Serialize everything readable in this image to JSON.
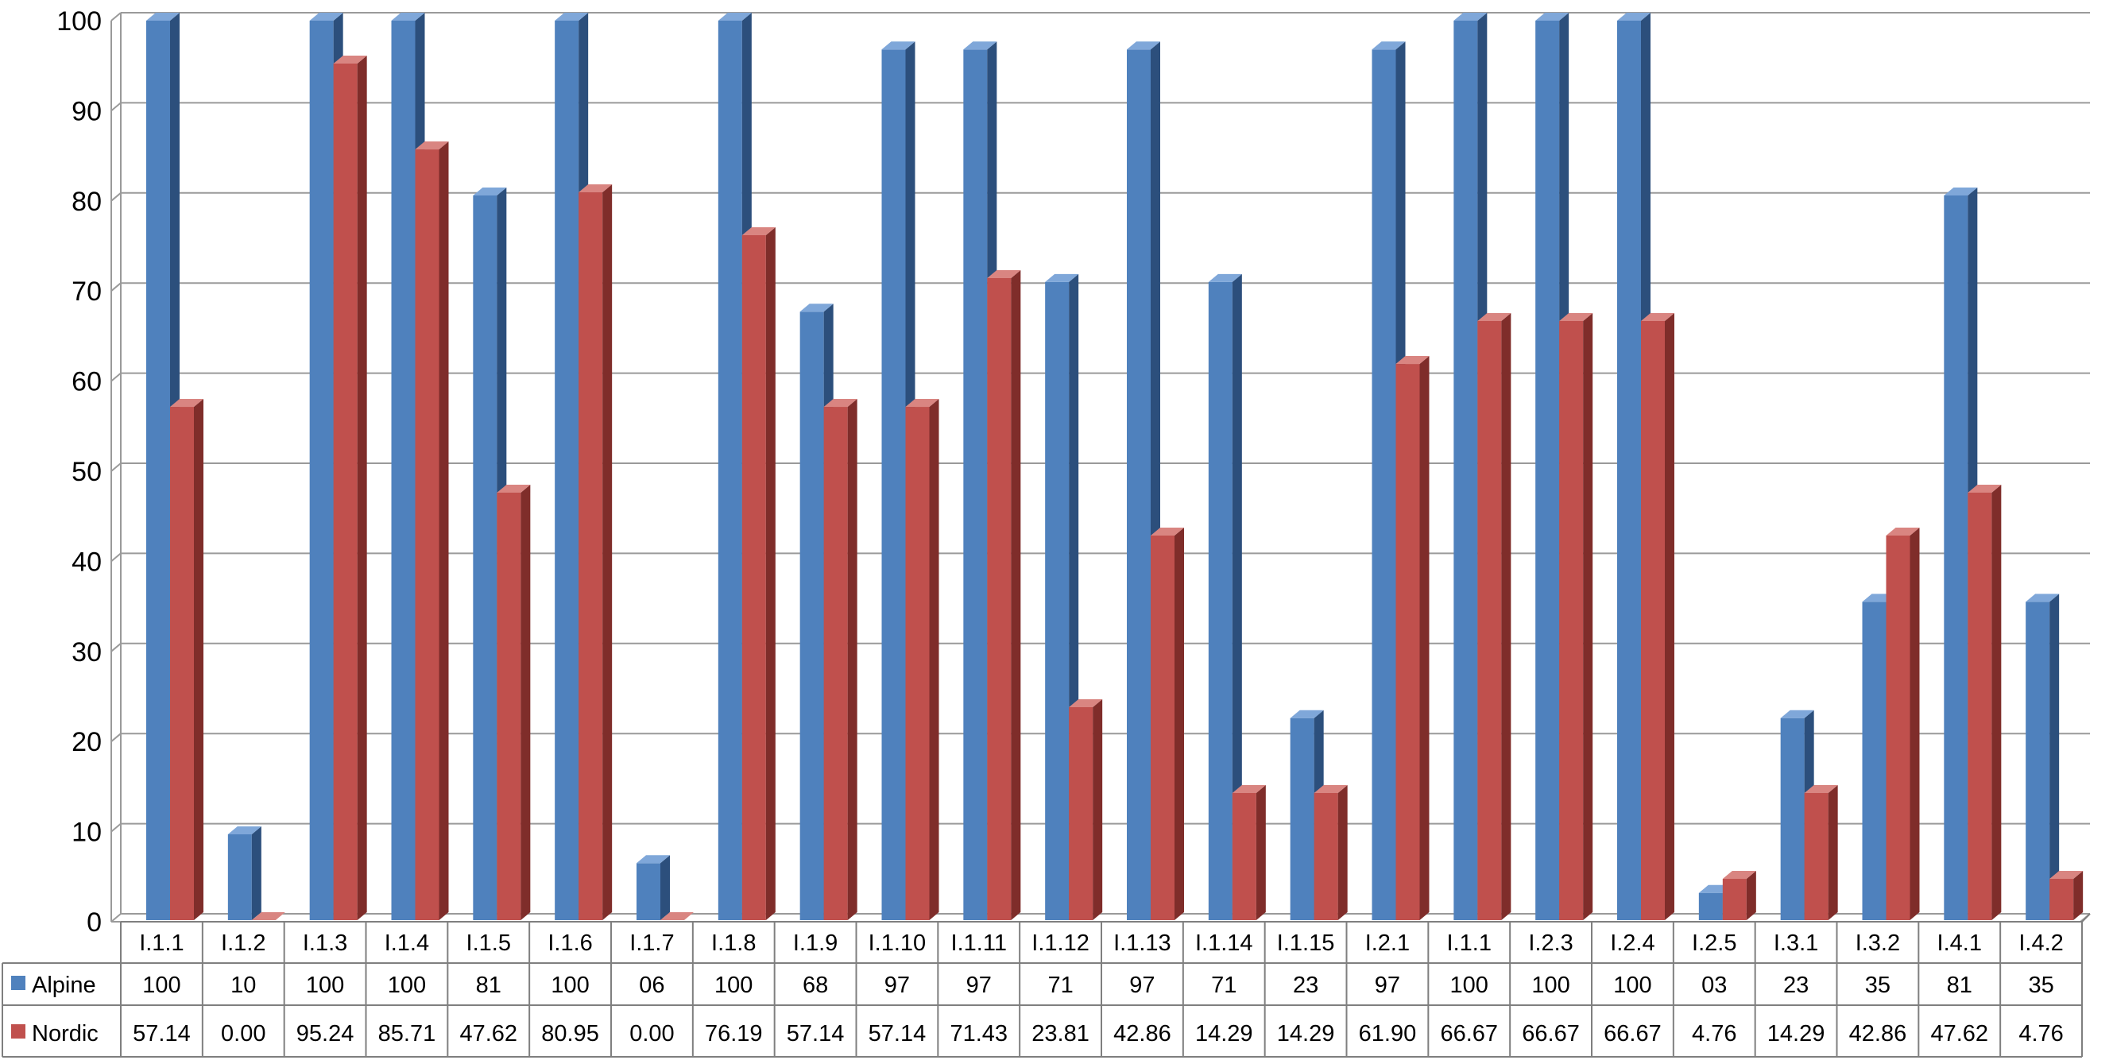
{
  "chart_data": {
    "type": "bar",
    "categories": [
      "I.1.1",
      "I.1.2",
      "I.1.3",
      "I.1.4",
      "I.1.5",
      "I.1.6",
      "I.1.7",
      "I.1.8",
      "I.1.9",
      "I.1.10",
      "I.1.11",
      "I.1.12",
      "I.1.13",
      "I.1.14",
      "I.1.15",
      "I.2.1",
      "I.1.1",
      "I.2.3",
      "I.2.4",
      "I.2.5",
      "I.3.1",
      "I.3.2",
      "I.4.1",
      "I.4.2"
    ],
    "series": [
      {
        "name": "Alpine",
        "color": "#4F81BD",
        "values": [
          100,
          9.7,
          100,
          100,
          80.6,
          100,
          6.5,
          100,
          67.7,
          96.8,
          96.8,
          71,
          96.8,
          71,
          22.6,
          96.8,
          100,
          100,
          100,
          3.2,
          22.6,
          35.5,
          80.6,
          35.5
        ],
        "labels": [
          "100",
          "10",
          "100",
          "100",
          "81",
          "100",
          "06",
          "100",
          "68",
          "97",
          "97",
          "71",
          "97",
          "71",
          "23",
          "97",
          "100",
          "100",
          "100",
          "03",
          "23",
          "35",
          "81",
          "35"
        ]
      },
      {
        "name": "Nordic",
        "color": "#C0504D",
        "values": [
          57.14,
          0,
          95.24,
          85.71,
          47.62,
          80.95,
          0,
          76.19,
          57.14,
          57.14,
          71.43,
          23.81,
          42.86,
          14.29,
          14.29,
          61.9,
          66.67,
          66.67,
          66.67,
          4.76,
          14.29,
          42.86,
          47.62,
          4.76
        ],
        "labels": [
          "57.14",
          "0.00",
          "95.24",
          "85.71",
          "47.62",
          "80.95",
          "0.00",
          "76.19",
          "57.14",
          "57.14",
          "71.43",
          "23.81",
          "42.86",
          "14.29",
          "14.29",
          "61.90",
          "66.67",
          "66.67",
          "66.67",
          "4.76",
          "14.29",
          "42.86",
          "47.62",
          "4.76"
        ]
      }
    ],
    "yticks": [
      "0",
      "10",
      "20",
      "30",
      "40",
      "50",
      "60",
      "70",
      "80",
      "90",
      "100"
    ],
    "ylim": [
      0,
      100
    ],
    "grid": true,
    "legend": "data-table-left",
    "title": "",
    "xlabel": "",
    "ylabel": ""
  }
}
